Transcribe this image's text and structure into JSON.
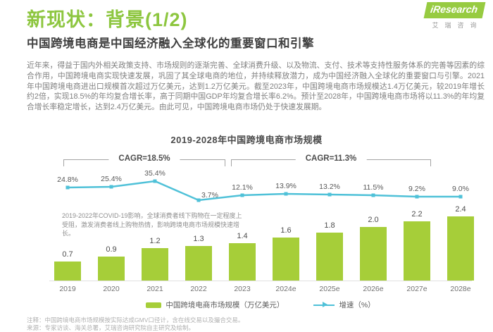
{
  "page": {
    "title": "新现状：背景(1/2)",
    "subtitle": "中国跨境电商是中国经济融入全球化的重要窗口和引擎",
    "body_paragraph": "近年来，得益于国内外相关政策支持、市场规则的逐渐完善、全球消费升级、以及物流、支付、技术等支持性服务体系的完善等因素的综合作用，中国跨境电商实现快速发展，巩固了其全球电商的地位，并持续释放潜力，成为中国经济融入全球化的重要窗口与引擎。2021年中国跨境电商进出口规模首次超过万亿美元，达到1.2万亿美元。截至2023年，中国跨境电商市场规模达1.4万亿美元，较2019年增长约2倍，实现18.5%的年均复合增长率，高于同期中国GDP年均复合增长率6.2%。预计至2028年，中国跨境电商市场将以11.3%的年均复合增长率稳定增长，达到2.4万亿美元。由此可见，中国跨境电商市场仍处于快速发展期。"
  },
  "logo": {
    "brand": "iResearch",
    "brand_cn": "艾瑞咨询",
    "brand_color": "#97cb41"
  },
  "chart_data": {
    "type": "bar",
    "title": "2019-2028年中国跨境电商市场规模",
    "categories": [
      "2019",
      "2020",
      "2021",
      "2022",
      "2023",
      "2024e",
      "2025e",
      "2026e",
      "2027e",
      "2028e"
    ],
    "series": [
      {
        "name": "中国跨境电商市场规模（万亿美元）",
        "type": "bar",
        "values": [
          0.7,
          0.9,
          1.2,
          1.3,
          1.4,
          1.6,
          1.8,
          2.0,
          2.2,
          2.4
        ],
        "color": "#a6ce39"
      },
      {
        "name": "增速（%）",
        "type": "line",
        "values": [
          24.8,
          25.4,
          35.4,
          3.7,
          12.1,
          13.9,
          13.2,
          11.5,
          9.2,
          9.0
        ],
        "color": "#4fc1d8"
      }
    ],
    "annotations": {
      "cagr_left": "CAGR=18.5%",
      "cagr_right": "CAGR=11.3%",
      "note": "2019-2022年COVID-19影响，全球消费者线下购物在一定程度上受阻，激发消费者线上购物热情，影响跨境电商市场规模快速增长。"
    },
    "legend_position": "bottom",
    "grid": false,
    "unit_bar": "万亿美元",
    "unit_line": "%"
  },
  "footnote": {
    "line1": "注释：中国跨境电商市场规模按实际达成GMV口径计，含在线交易以及撮合交易。",
    "line2": "来源：专家访谈、海关总署，艾瑞咨询研究院自主研究及绘制。"
  }
}
